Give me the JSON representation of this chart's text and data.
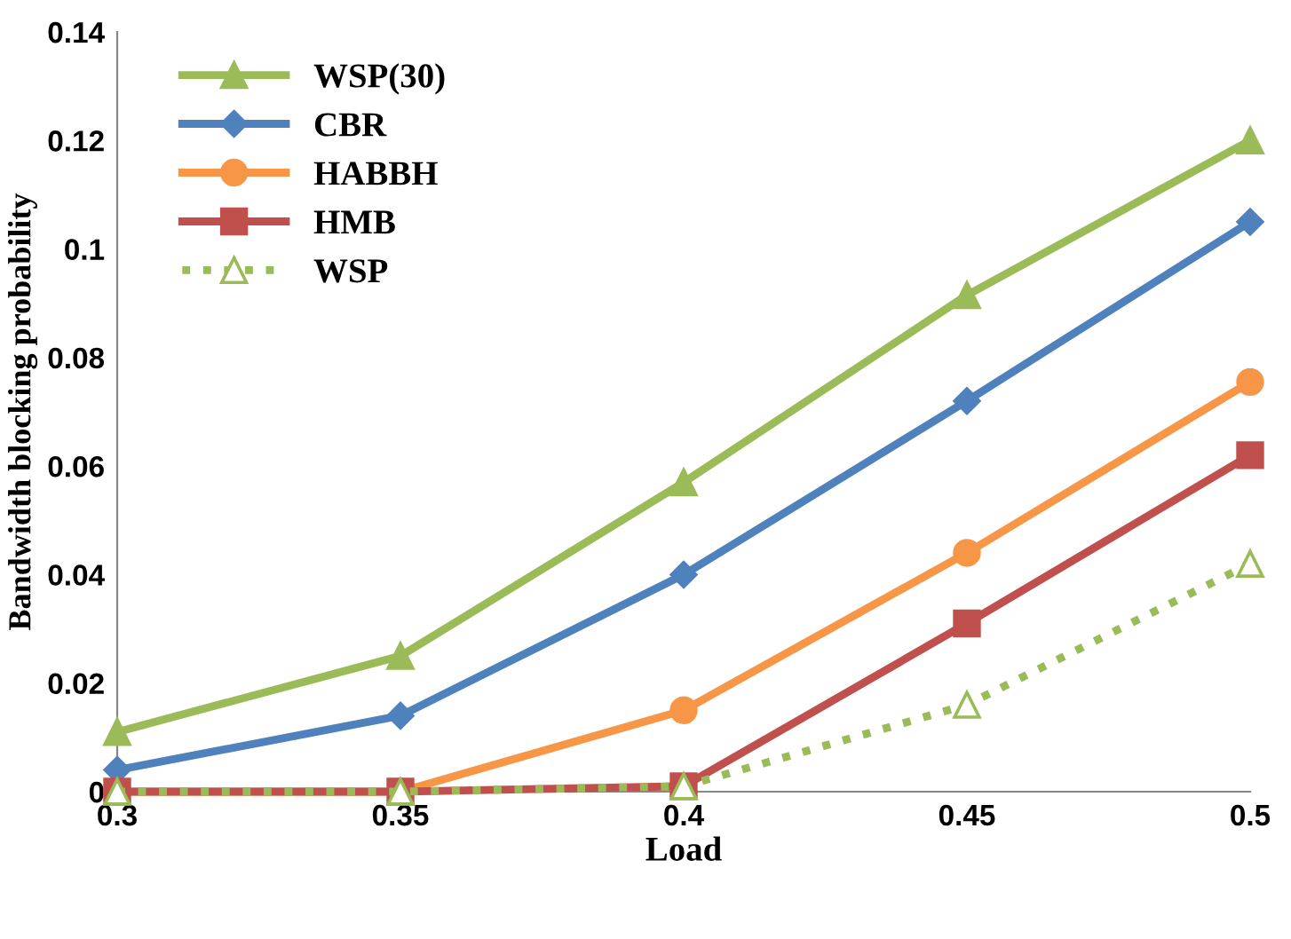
{
  "chart_data": {
    "type": "line",
    "xlabel": "Load",
    "ylabel": "Bandwidth blocking probability",
    "x": [
      0.3,
      0.35,
      0.4,
      0.45,
      0.5
    ],
    "xlim": [
      0.3,
      0.5
    ],
    "xticks": [
      0.3,
      0.35,
      0.4,
      0.45,
      0.5
    ],
    "ylim": [
      0,
      0.14
    ],
    "yticks": [
      0,
      0.02,
      0.04,
      0.06,
      0.08,
      0.1,
      0.12,
      0.14
    ],
    "grid": false,
    "legend": "top left",
    "series": [
      {
        "name": "WSP(30)",
        "color": "#9bbb59",
        "marker": "triangle",
        "line_style": "solid",
        "values": [
          0.011,
          0.025,
          0.057,
          0.0915,
          0.12
        ]
      },
      {
        "name": "CBR",
        "color": "#4f81bd",
        "marker": "diamond",
        "line_style": "solid",
        "values": [
          0.004,
          0.014,
          0.04,
          0.072,
          0.105
        ]
      },
      {
        "name": "HABBH",
        "color": "#f79646",
        "marker": "circle",
        "line_style": "solid",
        "values": [
          0,
          0,
          0.015,
          0.044,
          0.0755
        ]
      },
      {
        "name": "HMB",
        "color": "#c0504d",
        "marker": "square",
        "line_style": "solid",
        "values": [
          0,
          0,
          0.001,
          0.031,
          0.062
        ]
      },
      {
        "name": "WSP",
        "color": "#9bbb59",
        "marker": "triangle",
        "line_style": "dotted",
        "values": [
          0,
          0,
          0.001,
          0.016,
          0.042
        ]
      }
    ]
  }
}
